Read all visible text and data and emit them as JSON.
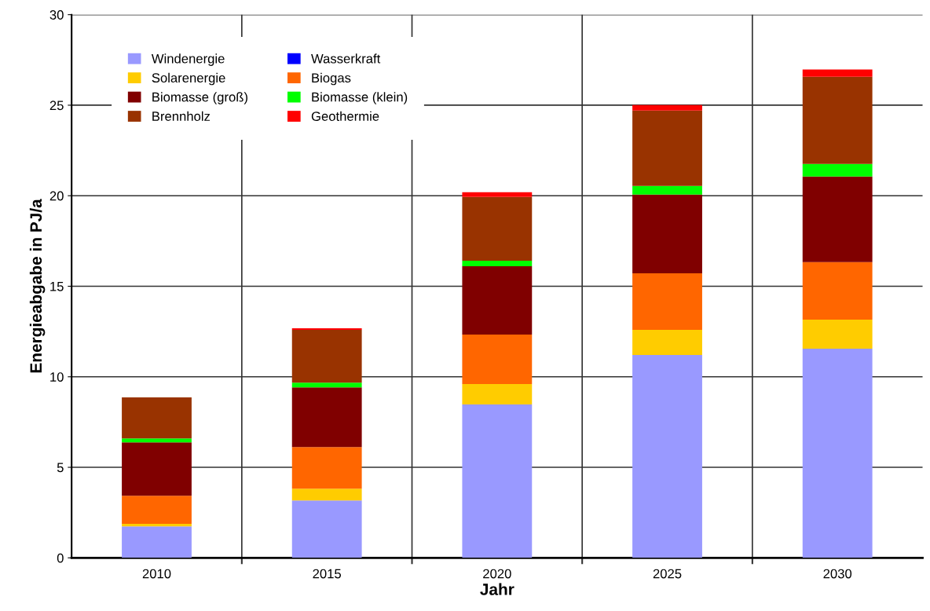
{
  "chart_data": {
    "type": "bar",
    "stacked": true,
    "xlabel": "Jahr",
    "ylabel": "Energieabgabe in PJ/a",
    "categories": [
      "2010",
      "2015",
      "2020",
      "2025",
      "2030"
    ],
    "series": [
      {
        "name": "Windenergie",
        "color": "#9999ff",
        "values": [
          1.74,
          3.17,
          8.47,
          11.2,
          11.55
        ]
      },
      {
        "name": "Wasserkraft",
        "color": "#0000ff",
        "values": [
          0,
          0,
          0,
          0,
          0
        ]
      },
      {
        "name": "Solarenergie",
        "color": "#ffcc00",
        "values": [
          0.14,
          0.65,
          1.13,
          1.39,
          1.61
        ]
      },
      {
        "name": "Biogas",
        "color": "#ff6600",
        "values": [
          1.55,
          2.3,
          2.73,
          3.13,
          3.17
        ]
      },
      {
        "name": "Biomasse (groß)",
        "color": "#800000",
        "values": [
          2.95,
          3.3,
          3.78,
          4.34,
          4.73
        ]
      },
      {
        "name": "Biomasse (klein)",
        "color": "#00ff00",
        "values": [
          0.22,
          0.26,
          0.3,
          0.48,
          0.69
        ]
      },
      {
        "name": "Brennholz",
        "color": "#993300",
        "values": [
          2.26,
          2.91,
          3.52,
          4.17,
          4.82
        ]
      },
      {
        "name": "Geothermie",
        "color": "#ff0000",
        "values": [
          0,
          0.09,
          0.26,
          0.3,
          0.4
        ]
      }
    ],
    "ylim": [
      0,
      30
    ],
    "yticks": [
      0,
      5,
      10,
      15,
      20,
      25,
      30
    ],
    "grid": true,
    "legend": "top left"
  }
}
